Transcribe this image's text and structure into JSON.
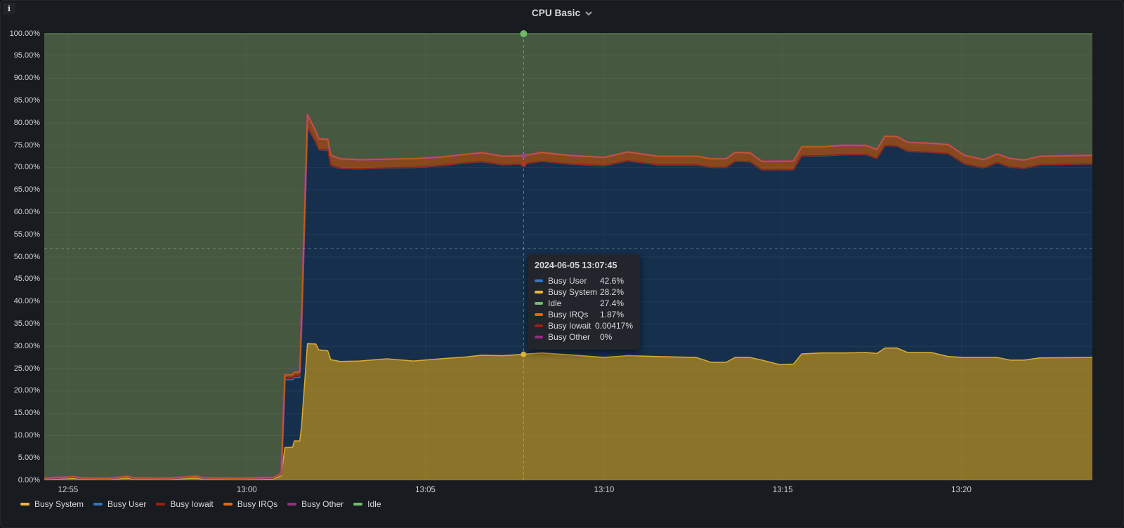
{
  "panel": {
    "title": "CPU Basic",
    "info_label": "i"
  },
  "y_axis": {
    "ticks": [
      {
        "label": "100.00%",
        "value": 100
      },
      {
        "label": "95.00%",
        "value": 95
      },
      {
        "label": "90.00%",
        "value": 90
      },
      {
        "label": "85.00%",
        "value": 85
      },
      {
        "label": "80.00%",
        "value": 80
      },
      {
        "label": "75.00%",
        "value": 75
      },
      {
        "label": "70.00%",
        "value": 70
      },
      {
        "label": "65.00%",
        "value": 65
      },
      {
        "label": "60.00%",
        "value": 60
      },
      {
        "label": "55.00%",
        "value": 55
      },
      {
        "label": "50.00%",
        "value": 50
      },
      {
        "label": "45.00%",
        "value": 45
      },
      {
        "label": "40.00%",
        "value": 40
      },
      {
        "label": "35.00%",
        "value": 35
      },
      {
        "label": "30.00%",
        "value": 30
      },
      {
        "label": "25.00%",
        "value": 25
      },
      {
        "label": "20.00%",
        "value": 20
      },
      {
        "label": "15.00%",
        "value": 15
      },
      {
        "label": "10.00%",
        "value": 10
      },
      {
        "label": "5.00%",
        "value": 5
      },
      {
        "label": "0.00%",
        "value": 0
      }
    ]
  },
  "x_axis": {
    "ticks": [
      {
        "label": "12:55",
        "t": 40
      },
      {
        "label": "13:00",
        "t": 340
      },
      {
        "label": "13:05",
        "t": 640
      },
      {
        "label": "13:10",
        "t": 940
      },
      {
        "label": "13:15",
        "t": 1240
      },
      {
        "label": "13:20",
        "t": 1540
      }
    ]
  },
  "legend": {
    "items": [
      {
        "label": "Busy System",
        "color": "#EAB839"
      },
      {
        "label": "Busy User",
        "color": "#3474C0"
      },
      {
        "label": "Busy Iowait",
        "color": "#99220F"
      },
      {
        "label": "Busy IRQs",
        "color": "#E8650D"
      },
      {
        "label": "Busy Other",
        "color": "#962D82"
      },
      {
        "label": "Idle",
        "color": "#73BF69"
      }
    ]
  },
  "tooltip": {
    "timestamp": "2024-06-05 13:07:45",
    "rows": [
      {
        "label": "Busy User",
        "color": "#3474C0",
        "value": "42.6%"
      },
      {
        "label": "Busy System",
        "color": "#EAB839",
        "value": "28.2%"
      },
      {
        "label": "Idle",
        "color": "#73BF69",
        "value": "27.4%"
      },
      {
        "label": "Busy IRQs",
        "color": "#E8650D",
        "value": "1.87%"
      },
      {
        "label": "Busy Iowait",
        "color": "#99220F",
        "value": "0.00417%"
      },
      {
        "label": "Busy Other",
        "color": "#962D82",
        "value": "0%"
      }
    ]
  },
  "chart_data": {
    "type": "area",
    "stacked": true,
    "unit": "percent",
    "ylim": [
      0,
      100
    ],
    "grid": true,
    "time_start": "12:54:20",
    "time_end": "13:23:40",
    "time_span_s": 1760,
    "stack_order": [
      "sys",
      "usr",
      "iow",
      "irq",
      "oth",
      "idle"
    ],
    "series": [
      {
        "key": "sys",
        "name": "Busy System",
        "line": "#D7A832",
        "fill": "#8B7329"
      },
      {
        "key": "usr",
        "name": "Busy User",
        "line": "#3B6FB0",
        "fill": "#152F4D"
      },
      {
        "key": "iow",
        "name": "Busy Iowait",
        "line": "#8C2616",
        "fill": "#7A2214"
      },
      {
        "key": "irq",
        "name": "Busy IRQs",
        "line": "#BF5D1E",
        "fill": "#87481E"
      },
      {
        "key": "oth",
        "name": "Busy Other",
        "line": "#8A3A78",
        "fill": "#5E2A54"
      },
      {
        "key": "idle",
        "name": "Idle",
        "line": "#5E8A57",
        "fill": "#465840"
      }
    ],
    "columns": [
      "t_seconds_from_start",
      "busy_system_pct",
      "busy_user_pct",
      "busy_iowait_pct",
      "busy_irqs_pct"
    ],
    "busy_other_constant_pct": 0,
    "samples": [
      [
        0,
        0.2,
        0.1,
        0.04,
        0.12
      ],
      [
        50,
        0.45,
        0.15,
        0.06,
        0.14
      ],
      [
        60,
        0.25,
        0.1,
        0.05,
        0.12
      ],
      [
        110,
        0.2,
        0.1,
        0.04,
        0.1
      ],
      [
        140,
        0.5,
        0.2,
        0.05,
        0.15
      ],
      [
        150,
        0.25,
        0.1,
        0.05,
        0.12
      ],
      [
        210,
        0.2,
        0.12,
        0.04,
        0.1
      ],
      [
        255,
        0.5,
        0.2,
        0.1,
        0.15
      ],
      [
        270,
        0.25,
        0.1,
        0.05,
        0.12
      ],
      [
        330,
        0.2,
        0.1,
        0.04,
        0.1
      ],
      [
        385,
        0.3,
        0.15,
        0.05,
        0.12
      ],
      [
        398,
        1.0,
        0.3,
        0.1,
        0.2
      ],
      [
        404,
        7.3,
        15.2,
        0.5,
        0.6
      ],
      [
        417,
        7.4,
        15.1,
        0.5,
        0.6
      ],
      [
        420,
        8.8,
        14.2,
        0.5,
        0.7
      ],
      [
        429,
        8.8,
        14.2,
        0.5,
        0.7
      ],
      [
        432,
        12,
        22,
        0.4,
        1.3
      ],
      [
        442,
        30.6,
        48.4,
        0.15,
        2.7
      ],
      [
        456,
        30.5,
        45.0,
        0.12,
        2.5
      ],
      [
        461,
        29.2,
        44.8,
        0.1,
        2.35
      ],
      [
        476,
        29.0,
        44.9,
        0.1,
        2.35
      ],
      [
        481,
        27.0,
        43.5,
        0.08,
        2.2
      ],
      [
        497,
        26.6,
        43.2,
        0.08,
        2.1
      ],
      [
        530,
        26.7,
        43.0,
        0.06,
        2.0
      ],
      [
        575,
        27.2,
        42.7,
        0.06,
        1.95
      ],
      [
        620,
        26.7,
        43.3,
        0.06,
        1.95
      ],
      [
        665,
        27.2,
        43.2,
        0.05,
        1.9
      ],
      [
        706,
        27.6,
        43.4,
        0.05,
        1.9
      ],
      [
        735,
        28.0,
        43.3,
        0.05,
        2.0
      ],
      [
        770,
        27.9,
        42.7,
        0.05,
        1.9
      ],
      [
        805,
        28.2,
        42.6,
        0.004,
        1.87
      ],
      [
        835,
        28.5,
        42.9,
        0.05,
        1.95
      ],
      [
        880,
        28.1,
        42.7,
        0.05,
        1.9
      ],
      [
        940,
        27.5,
        42.9,
        0.05,
        1.85
      ],
      [
        980,
        27.9,
        43.6,
        0.05,
        1.95
      ],
      [
        1030,
        27.7,
        42.9,
        0.05,
        1.9
      ],
      [
        1095,
        27.5,
        43.1,
        0.05,
        1.9
      ],
      [
        1120,
        26.4,
        43.6,
        0.05,
        1.95
      ],
      [
        1145,
        26.4,
        43.6,
        0.05,
        1.95
      ],
      [
        1160,
        27.5,
        43.9,
        0.05,
        1.95
      ],
      [
        1185,
        27.5,
        43.8,
        0.05,
        1.95
      ],
      [
        1205,
        26.9,
        42.6,
        0.05,
        1.85
      ],
      [
        1235,
        25.9,
        43.6,
        0.05,
        1.9
      ],
      [
        1258,
        26.0,
        43.5,
        0.05,
        1.9
      ],
      [
        1272,
        28.3,
        44.3,
        0.05,
        2.0
      ],
      [
        1305,
        28.5,
        44.1,
        0.05,
        2.0
      ],
      [
        1340,
        28.5,
        44.4,
        0.05,
        2.05
      ],
      [
        1380,
        28.6,
        44.3,
        0.05,
        2.0
      ],
      [
        1398,
        28.4,
        43.6,
        0.05,
        2.0
      ],
      [
        1412,
        29.6,
        45.3,
        0.05,
        2.1
      ],
      [
        1432,
        29.6,
        45.2,
        0.05,
        2.1
      ],
      [
        1450,
        28.6,
        45.0,
        0.05,
        2.0
      ],
      [
        1490,
        28.6,
        44.8,
        0.05,
        2.0
      ],
      [
        1518,
        27.7,
        45.4,
        0.05,
        2.0
      ],
      [
        1545,
        27.5,
        43.3,
        0.05,
        1.9
      ],
      [
        1578,
        27.5,
        42.4,
        0.05,
        1.85
      ],
      [
        1600,
        27.5,
        43.6,
        0.05,
        1.9
      ],
      [
        1622,
        26.9,
        43.2,
        0.05,
        1.9
      ],
      [
        1645,
        26.9,
        42.9,
        0.05,
        1.85
      ],
      [
        1672,
        27.4,
        43.2,
        0.05,
        1.9
      ],
      [
        1760,
        27.5,
        43.3,
        0.05,
        1.9
      ]
    ],
    "crosshair": {
      "t": 805,
      "time_label": "13:07:45",
      "h_line_percent": 51.9,
      "points": [
        {
          "series": "Busy System",
          "cum_pct": 28.2,
          "color": "#EAB839",
          "r": 4
        },
        {
          "series": "Busy Iowait",
          "cum_pct": 70.8,
          "color": "#B5332A",
          "r": 4
        },
        {
          "series": "Busy Other",
          "cum_pct": 72.67,
          "color": "#8F4A8C",
          "r": 4
        },
        {
          "series": "Idle",
          "cum_pct": 100,
          "color": "#73BF69",
          "r": 5
        }
      ]
    }
  }
}
